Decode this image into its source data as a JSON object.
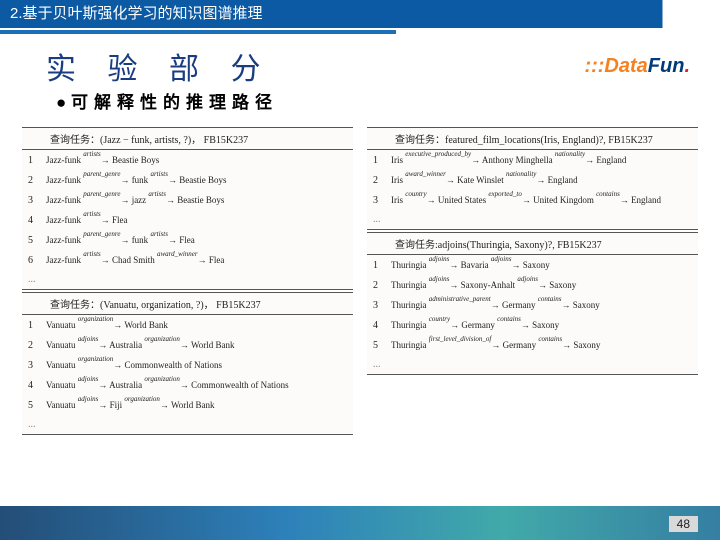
{
  "header": {
    "section": "2.基于贝叶斯强化学习的知识图谱推理"
  },
  "title": "实 验 部 分",
  "subtitle": "可解释性的推理路径",
  "logo": {
    "dots": ":::",
    "part1": "Data",
    "part2": "Fun",
    "dot": "."
  },
  "page": "48",
  "tables": {
    "left": [
      {
        "header": "查询任务：(Jazz − funk, artists, ?)， FB15K237",
        "rows": [
          "Jazz-funk <sup>artists</sup>→ Beastie Boys",
          "Jazz-funk <sup>parent_genre</sup>→ funk <sup>artists</sup>→ Beastie Boys",
          "Jazz-funk <sup>parent_genre</sup>→ jazz <sup>artists</sup>→ Beastie Boys",
          "Jazz-funk <sup>artists</sup>→ Flea",
          "Jazz-funk <sup>parent_genre</sup>→ funk <sup>artists</sup>→ Flea",
          "Jazz-funk <sup>artists</sup>→ Chad Smith <sup>award_winner</sup>→ Flea"
        ]
      },
      {
        "header": "查询任务：(Vanuatu, organization, ?)， FB15K237",
        "rows": [
          "Vanuatu <sup>organization</sup>→ World Bank",
          "Vanuatu <sup>adjoins</sup>→ Australia <sup>organization</sup>→ World Bank",
          "Vanuatu <sup>organization</sup>→ Commonwealth of Nations",
          "Vanuatu <sup>adjoins</sup>→ Australia <sup>organization</sup>→ Commonwealth of Nations",
          "Vanuatu <sup>adjoins</sup>→ Fiji <sup>organization</sup>→ World Bank"
        ]
      }
    ],
    "right": [
      {
        "header": "查询任务：featured_film_locations(Iris, England)?, FB15K237",
        "rows": [
          "Iris <sup>executive_produced_by</sup>→ Anthony Minghella <sup>nationality</sup>→ England",
          "Iris <sup>award_winner</sup>→ Kate Winslet <sup>nationality</sup>→ England",
          "Iris <sup>country</sup>→ United States <sup>exported_to</sup>→ United Kingdom <sup>contains</sup>→ England"
        ]
      },
      {
        "header": "查询任务:adjoins(Thuringia, Saxony)?, FB15K237",
        "rows": [
          "Thuringia <sup>adjoins</sup>→ Bavaria <sup>adjoins</sup>→ Saxony",
          "Thuringia <sup>adjoins</sup>→ Saxony-Anhalt <sup>adjoins</sup>→ Saxony",
          "Thuringia <sup>administrative_parent</sup>→ Germany <sup>contains</sup>→ Saxony",
          "Thuringia <sup>country</sup>→ Germany <sup>contains</sup>→ Saxony",
          "Thuringia <sup>first_level_division_of</sup>→ Germany <sup>contains</sup>→ Saxony"
        ]
      }
    ]
  }
}
